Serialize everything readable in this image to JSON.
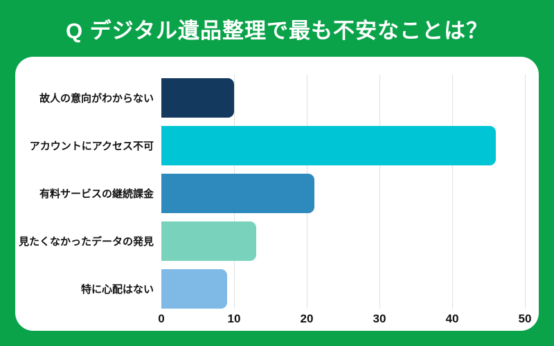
{
  "title": "Q デジタル遺品整理で最も不安なことは？",
  "colors": {
    "background_green": "#0aa34a",
    "card_white": "#ffffff",
    "title_text": "#ffffff",
    "label_text": "#111111",
    "gridline": "#e0e0e0"
  },
  "chart_data": {
    "type": "bar",
    "orientation": "horizontal",
    "title": "Q デジタル遺品整理で最も不安なことは？",
    "categories": [
      "故人の意向がわからない",
      "アカウントにアクセス不可",
      "有料サービスの継続課金",
      "見たくなかったデータの発見",
      "特に心配はない"
    ],
    "values": [
      10,
      46,
      21,
      13,
      9
    ],
    "bar_colors": [
      "#14395f",
      "#00c5d5",
      "#2e8abc",
      "#79d3bc",
      "#7fb9e6"
    ],
    "xlim": [
      0,
      50
    ],
    "x_ticks": [
      0,
      10,
      20,
      30,
      40,
      50
    ],
    "grid": true,
    "xlabel": "",
    "ylabel": ""
  }
}
